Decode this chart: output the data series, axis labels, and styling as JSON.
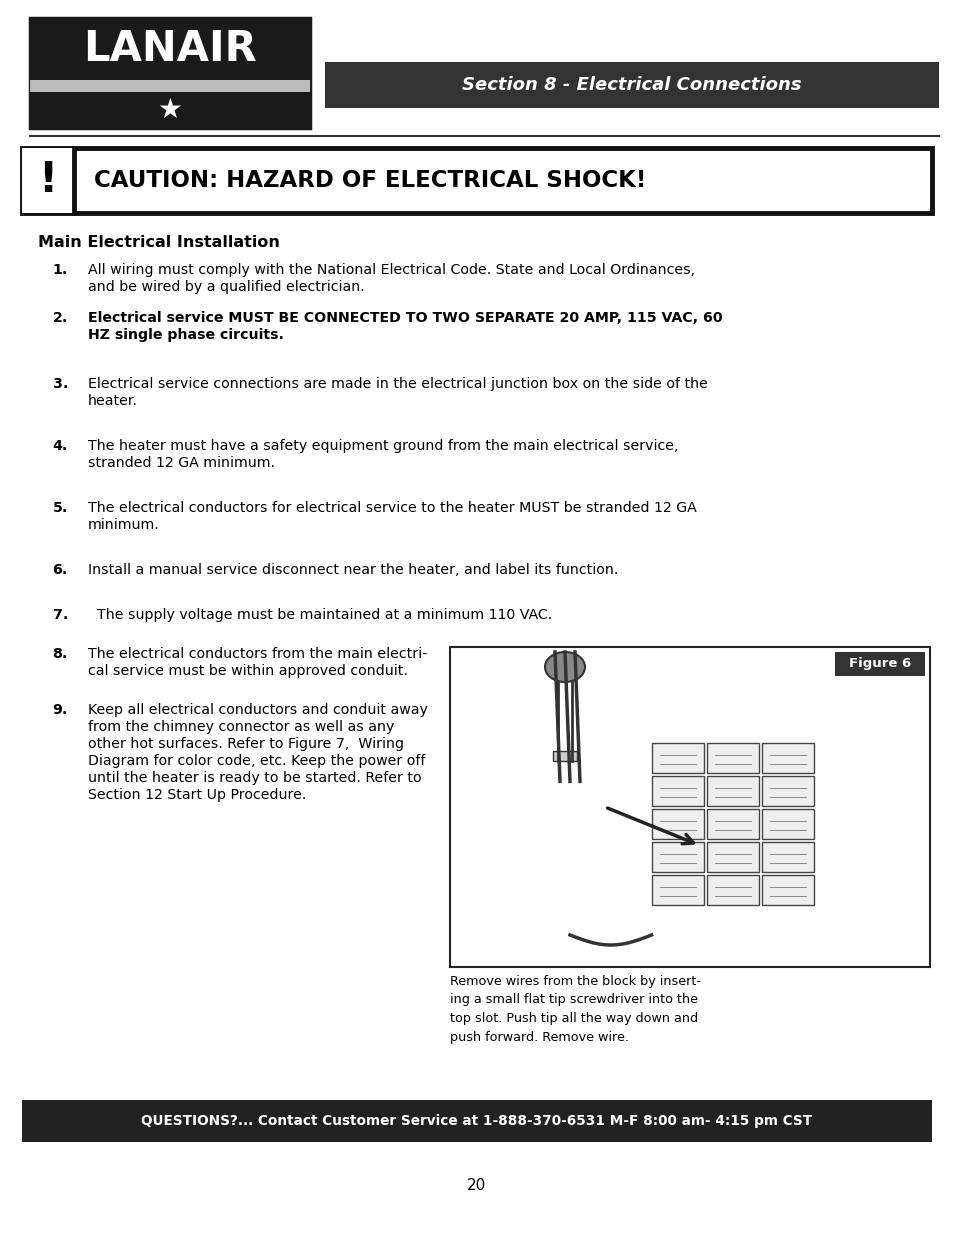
{
  "bg_color": "#ffffff",
  "section_header_bg": "#333333",
  "section_header_text": "Section 8 - Electrical Connections",
  "section_header_color": "#ffffff",
  "caution_text": "CAUTION: HAZARD OF ELECTRICAL SHOCK!",
  "main_title": "Main Electrical Installation",
  "items": [
    {
      "num": "1.",
      "bold": false,
      "line1": "All wiring must comply with the National Electrical Code. State and Local Ordinances,",
      "line2": "and be wired by a qualified electrician."
    },
    {
      "num": "2.",
      "bold": true,
      "line1": "Electrical service MUST BE CONNECTED TO TWO SEPARATE 20 AMP, 115 VAC, 60",
      "line2": "HZ single phase circuits."
    },
    {
      "num": "3.",
      "bold": false,
      "line1": "Electrical service connections are made in the electrical junction box on the side of the",
      "line2": "heater."
    },
    {
      "num": "4.",
      "bold": false,
      "line1": "The heater must have a safety equipment ground from the main electrical service,",
      "line2": "stranded 12 GA minimum."
    },
    {
      "num": "5.",
      "bold": false,
      "line1": "The electrical conductors for electrical service to the heater MUST be stranded 12 GA",
      "line2": "minimum."
    },
    {
      "num": "6.",
      "bold": false,
      "line1": "Install a manual service disconnect near the heater, and label its function.",
      "line2": ""
    },
    {
      "num": "7.",
      "bold": false,
      "line1": "  The supply voltage must be maintained at a minimum 110 VAC.",
      "line2": ""
    },
    {
      "num": "8.",
      "bold": false,
      "line1": "The electrical conductors from the main electri-",
      "line2": "cal service must be within approved conduit."
    },
    {
      "num": "9.",
      "bold": false,
      "line1": "Keep all electrical conductors and conduit away",
      "line2": "from the chimney connector as well as any",
      "line3": "other hot surfaces. Refer to Figure 7,  Wiring",
      "line4": "Diagram for color code, etc. Keep the power off",
      "line5": "until the heater is ready to be started. Refer to",
      "line6": "Section 12 Start Up Procedure."
    }
  ],
  "figure_label": "Figure 6",
  "figure_caption": "Remove wires from the block by insert-\ning a small flat tip screwdriver into the\ntop slot. Push tip all the way down and\npush forward. Remove wire.",
  "footer_bg": "#222222",
  "footer_text": "QUESTIONS?... Contact Customer Service at 1-888-370-6531 M-F 8:00 am- 4:15 pm CST",
  "page_number": "20"
}
